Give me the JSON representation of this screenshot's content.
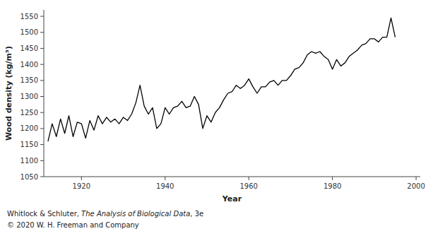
{
  "chart_data": {
    "type": "line",
    "x_label": "Year",
    "y_label": "Wood density (kg/m³)",
    "annotations": [
      [
        "Whitlock & Schluter, ",
        "The Analysis of Biological Data",
        ", 3e"
      ],
      [
        "© 2020 W. H. Freeman and Company"
      ]
    ],
    "x": [
      1912,
      1913,
      1914,
      1915,
      1916,
      1917,
      1918,
      1919,
      1920,
      1921,
      1922,
      1923,
      1924,
      1925,
      1926,
      1927,
      1928,
      1929,
      1930,
      1931,
      1932,
      1933,
      1934,
      1935,
      1936,
      1937,
      1938,
      1939,
      1940,
      1941,
      1942,
      1943,
      1944,
      1945,
      1946,
      1947,
      1948,
      1949,
      1950,
      1951,
      1952,
      1953,
      1954,
      1955,
      1956,
      1957,
      1958,
      1959,
      1960,
      1961,
      1962,
      1963,
      1964,
      1965,
      1966,
      1967,
      1968,
      1969,
      1970,
      1971,
      1972,
      1973,
      1974,
      1975,
      1976,
      1977,
      1978,
      1979,
      1980,
      1981,
      1982,
      1983,
      1984,
      1985,
      1986,
      1987,
      1988,
      1989,
      1990,
      1991,
      1992,
      1993,
      1994,
      1995
    ],
    "values": [
      1160,
      1215,
      1175,
      1230,
      1185,
      1240,
      1175,
      1220,
      1215,
      1170,
      1225,
      1195,
      1240,
      1215,
      1235,
      1220,
      1230,
      1215,
      1235,
      1225,
      1245,
      1280,
      1335,
      1270,
      1245,
      1265,
      1200,
      1215,
      1265,
      1245,
      1265,
      1270,
      1285,
      1265,
      1270,
      1300,
      1275,
      1200,
      1240,
      1220,
      1250,
      1265,
      1290,
      1310,
      1315,
      1335,
      1325,
      1335,
      1355,
      1330,
      1310,
      1330,
      1330,
      1345,
      1350,
      1335,
      1350,
      1350,
      1365,
      1385,
      1390,
      1405,
      1430,
      1440,
      1435,
      1440,
      1425,
      1415,
      1385,
      1415,
      1395,
      1405,
      1425,
      1435,
      1445,
      1460,
      1465,
      1480,
      1480,
      1470,
      1485,
      1485,
      1545,
      1485
    ],
    "color": "#000000",
    "xlim": [
      1911,
      2001
    ],
    "ylim": [
      1050,
      1570
    ],
    "xticks": [
      1920,
      1940,
      1960,
      1980,
      2000
    ],
    "yticks": [
      1050,
      1100,
      1150,
      1200,
      1250,
      1300,
      1350,
      1400,
      1450,
      1500,
      1550
    ]
  }
}
